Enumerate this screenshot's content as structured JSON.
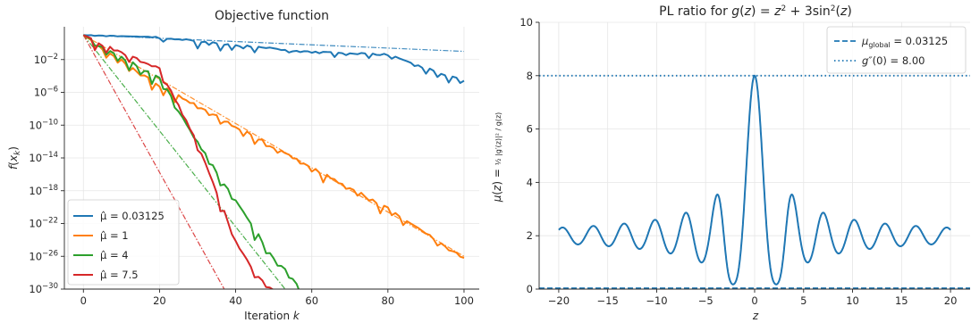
{
  "chart_data": [
    {
      "type": "line",
      "title": "Objective function",
      "xlabel": "Iteration k",
      "ylabel": "f(x_k)",
      "yscale": "log",
      "xlim": [
        -5,
        104
      ],
      "ylim": [
        1e-30,
        100.0
      ],
      "xticks": [
        "0",
        "20",
        "40",
        "60",
        "80",
        "100"
      ],
      "yticks": [
        "10^-2",
        "10^-6",
        "10^-10",
        "10^-14",
        "10^-18",
        "10^-22",
        "10^-26",
        "10^-30"
      ],
      "grid": true,
      "legend_position": "lower-left",
      "series": [
        {
          "name": "μ̂ = 0.03125",
          "color": "#1f77b4",
          "x": [
            0,
            20,
            40,
            60,
            80,
            100
          ],
          "y": [
            10,
            6,
            0.8,
            0.1,
            0.05,
            3e-05
          ]
        },
        {
          "name": "μ̂ = 1",
          "color": "#ff7f0e",
          "x": [
            0,
            20,
            40,
            60,
            80,
            100
          ],
          "y": [
            10,
            1e-05,
            1e-10,
            1e-15,
            1e-20,
            1e-26
          ]
        },
        {
          "name": "μ̂ = 4",
          "color": "#2ca02c",
          "x": [
            0,
            20,
            30,
            40,
            50,
            58
          ],
          "y": [
            10,
            0.0001,
            1e-12,
            1e-19,
            1e-26,
            1e-30
          ]
        },
        {
          "name": "μ̂ = 7.5",
          "color": "#d62728",
          "x": [
            0,
            20,
            30,
            40,
            45,
            50
          ],
          "y": [
            10,
            0.001,
            1e-12,
            1e-24,
            1e-28,
            1e-30
          ]
        }
      ],
      "reference_lines": [
        {
          "color": "#ff7f0e",
          "x": [
            0,
            100
          ],
          "y": [
            10,
            1e-26
          ]
        },
        {
          "color": "#2ca02c",
          "x": [
            0,
            53
          ],
          "y": [
            10,
            1e-30
          ]
        },
        {
          "color": "#d62728",
          "x": [
            0,
            37
          ],
          "y": [
            10,
            1e-30
          ]
        },
        {
          "color": "#1f77b4",
          "x": [
            0,
            100
          ],
          "y": [
            10,
            0.1
          ]
        }
      ]
    },
    {
      "type": "line",
      "title": "PL ratio for g(z) = z² + 3sin²(z)",
      "xlabel": "z",
      "ylabel": "μ(z) = ½|g′(z)|² / g(z)",
      "xlim": [
        -22,
        22
      ],
      "ylim": [
        0,
        10
      ],
      "xticks": [
        "−20",
        "−15",
        "−10",
        "−5",
        "0",
        "5",
        "10",
        "15",
        "20"
      ],
      "yticks": [
        "0",
        "2",
        "4",
        "6",
        "8",
        "10"
      ],
      "grid": true,
      "legend_position": "top-right",
      "function": "0.5*(2z + 3sin(2z))^2 / (z^2 + 3sin^2 z)",
      "series": [
        {
          "name": "",
          "color": "#1f77b4",
          "x_range": [
            -20,
            20
          ]
        }
      ],
      "hlines": [
        {
          "name": "μ_global = 0.03125",
          "value": 0.03125,
          "style": "dashed",
          "color": "#1f77b4"
        },
        {
          "name": "g″(0) = 8.00",
          "value": 8.0,
          "style": "dotted",
          "color": "#1f77b4"
        }
      ]
    }
  ]
}
